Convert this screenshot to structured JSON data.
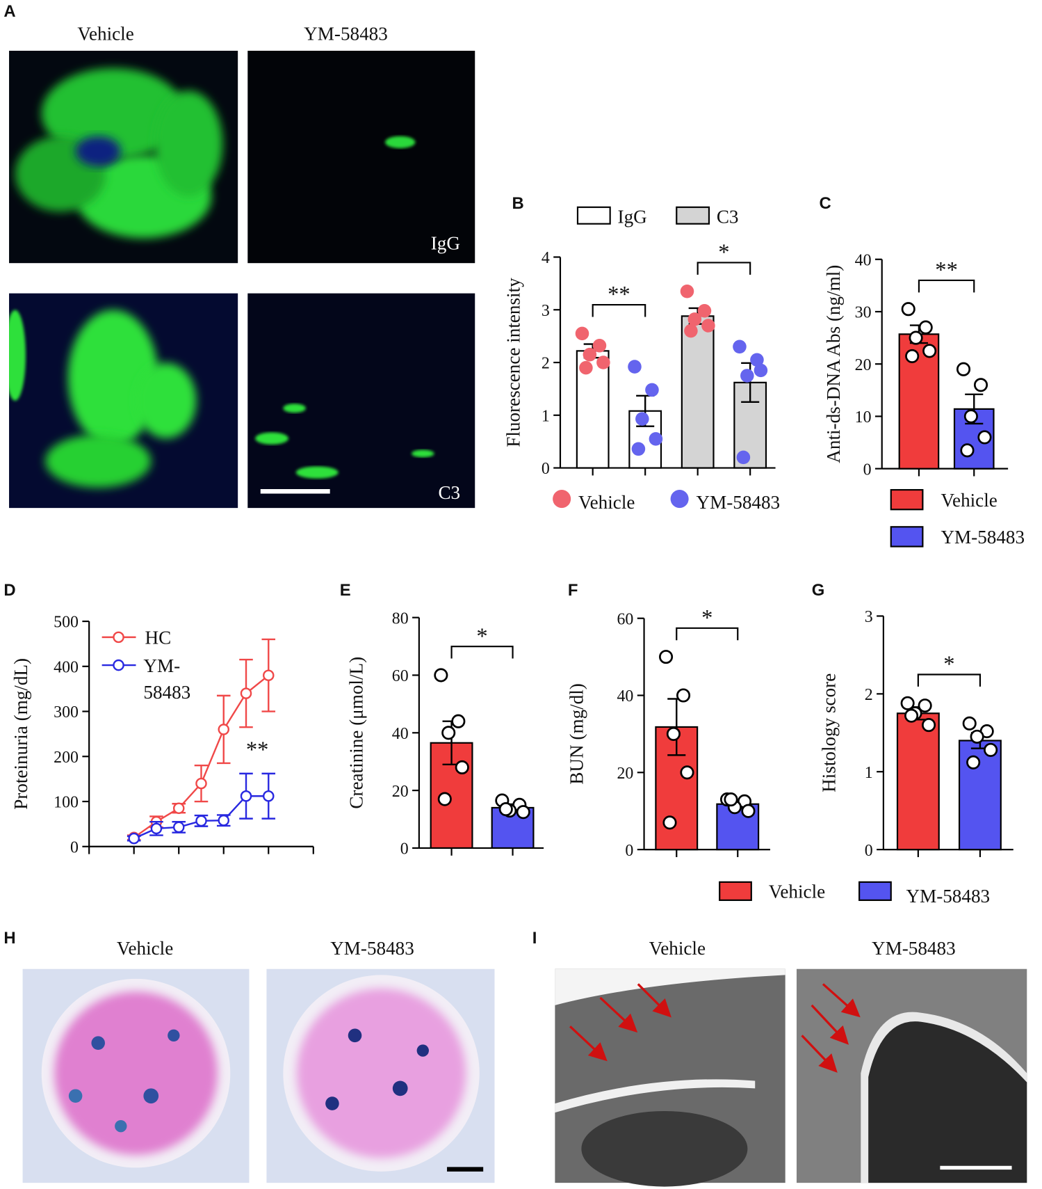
{
  "chart_data": [
    {
      "type": "bar",
      "panel": "B",
      "ylabel": "Fluorescence intensity",
      "ylim": [
        0,
        4
      ],
      "yticks": [
        0,
        1,
        2,
        3,
        4
      ],
      "series": [
        {
          "name": "IgG",
          "color": "#ffffff",
          "values": [
            2.22,
            1.08
          ],
          "errors": [
            0.13,
            0.29
          ],
          "points": [
            [
              2.55,
              2.32,
              2.15,
              2.0,
              1.9
            ],
            [
              1.92,
              1.48,
              0.93,
              0.55,
              0.36
            ]
          ]
        },
        {
          "name": "C3",
          "color": "#d4d4d4",
          "values": [
            2.88,
            1.62
          ],
          "errors": [
            0.15,
            0.37
          ],
          "points": [
            [
              3.35,
              2.98,
              2.82,
              2.7,
              2.6
            ],
            [
              2.3,
              2.05,
              1.75,
              1.85,
              0.2
            ]
          ]
        }
      ],
      "groups": [
        {
          "name": "Vehicle",
          "color": "#f0646e"
        },
        {
          "name": "YM-58483",
          "color": "#6464ee"
        }
      ],
      "significance": [
        "**",
        "*"
      ]
    },
    {
      "type": "bar",
      "panel": "C",
      "ylabel": "Anti-ds-DNA Abs (ng/ml)",
      "ylim": [
        0,
        40
      ],
      "yticks": [
        0,
        10,
        20,
        30,
        40
      ],
      "point_color": "#ffffff",
      "series": [
        {
          "name": "Vehicle",
          "color": "#f03c3c",
          "values": [
            25.7
          ],
          "errors": [
            1.7
          ],
          "points": [
            [
              30.5,
              27,
              25,
              22.5,
              21.5
            ]
          ]
        },
        {
          "name": "YM-58483",
          "color": "#5454f0",
          "values": [
            11.4
          ],
          "errors": [
            2.8
          ],
          "points": [
            [
              19,
              16,
              10,
              6,
              3.5
            ]
          ]
        }
      ],
      "significance": "**"
    },
    {
      "type": "line",
      "panel": "D",
      "ylabel": "Proteinuria (mg/dL)",
      "x": [
        1,
        2,
        3,
        4,
        5,
        6,
        7
      ],
      "xlim": [
        -1,
        9
      ],
      "xticks": [
        -1,
        1,
        3,
        5,
        7,
        9
      ],
      "ylim": [
        0,
        500
      ],
      "yticks": [
        0,
        100,
        200,
        300,
        400,
        500
      ],
      "series": [
        {
          "name": "HC",
          "color": "#f04848",
          "values": [
            20,
            55,
            85,
            140,
            260,
            340,
            380
          ],
          "errors": [
            5,
            12,
            10,
            40,
            75,
            75,
            80
          ]
        },
        {
          "name": "YM-58483",
          "color": "#2828e0",
          "values": [
            18,
            40,
            43,
            57,
            58,
            112,
            112
          ],
          "errors": [
            5,
            15,
            12,
            12,
            12,
            50,
            50
          ]
        }
      ],
      "annotation": "**"
    },
    {
      "type": "bar",
      "panel": "E",
      "ylabel": "Creatinine (μmol/L)",
      "ylim": [
        0,
        80
      ],
      "yticks": [
        0,
        20,
        40,
        60,
        80
      ],
      "point_color": "#ffffff",
      "series": [
        {
          "color": "#f03c3c",
          "values": [
            36.5
          ],
          "errors": [
            7.5
          ],
          "points": [
            [
              60,
              44,
              40,
              28,
              17
            ]
          ]
        },
        {
          "color": "#5454f0",
          "values": [
            14
          ],
          "errors": [
            1.2
          ],
          "points": [
            [
              16.5,
              15,
              13,
              12.5,
              13.5
            ]
          ]
        }
      ],
      "significance": "*"
    },
    {
      "type": "bar",
      "panel": "F",
      "ylabel": "BUN (mg/dl)",
      "ylim": [
        0,
        60
      ],
      "yticks": [
        0,
        20,
        40,
        60
      ],
      "point_color": "#ffffff",
      "series": [
        {
          "color": "#f03c3c",
          "values": [
            31.8
          ],
          "errors": [
            7.3
          ],
          "points": [
            [
              50,
              40,
              30,
              20,
              7
            ]
          ]
        },
        {
          "color": "#5454f0",
          "values": [
            11.8
          ],
          "errors": [
            1
          ],
          "points": [
            [
              13,
              12.5,
              11,
              10,
              13
            ]
          ]
        }
      ],
      "significance": "*"
    },
    {
      "type": "bar",
      "panel": "G",
      "ylabel": "Histology score",
      "ylim": [
        0,
        3
      ],
      "yticks": [
        0,
        1,
        2,
        3
      ],
      "point_color": "#ffffff",
      "series": [
        {
          "name": "Vehicle",
          "color": "#f03c3c",
          "values": [
            1.75
          ],
          "errors": [
            0.08
          ],
          "points": [
            [
              1.88,
              1.85,
              1.75,
              1.6,
              1.72
            ]
          ]
        },
        {
          "name": "YM-58483",
          "color": "#5454f0",
          "values": [
            1.4
          ],
          "errors": [
            0.1
          ],
          "points": [
            [
              1.62,
              1.52,
              1.45,
              1.28,
              1.12
            ]
          ]
        }
      ],
      "significance": "*"
    }
  ],
  "figure": {
    "panel_a": {
      "letter": "A",
      "columns": [
        "Vehicle",
        "YM-58483"
      ],
      "rows": [
        "IgG",
        "C3"
      ]
    },
    "panel_h": {
      "letter": "H",
      "columns": [
        "Vehicle",
        "YM-58483"
      ]
    },
    "panel_i": {
      "letter": "I",
      "columns": [
        "Vehicle",
        "YM-58483"
      ]
    }
  }
}
